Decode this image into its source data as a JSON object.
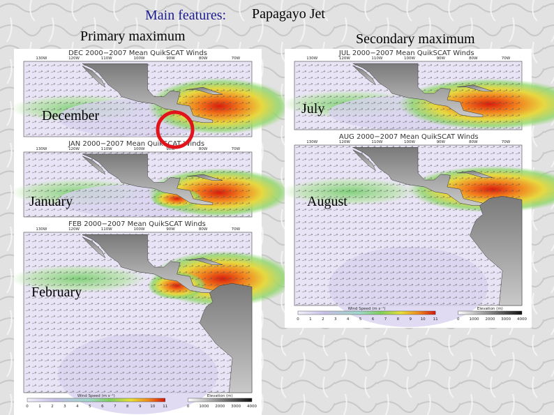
{
  "header": {
    "title_prefix": "Main features:",
    "title": "Papagayo Jet",
    "left_heading": "Primary maximum",
    "right_heading": "Secondary maximum"
  },
  "panels": [
    {
      "title": "DEC 2000−2007 Mean QuikSCAT Winds",
      "label": "December",
      "lon_labels": [
        "130W",
        "120W",
        "110W",
        "100W",
        "90W",
        "80W",
        "70W"
      ]
    },
    {
      "title": "JAN 2000−2007 Mean QuikSCAT Winds",
      "label": "January",
      "lon_labels": [
        "130W",
        "120W",
        "110W",
        "100W",
        "90W",
        "80W",
        "70W"
      ]
    },
    {
      "title": "FEB 2000−2007 Mean QuikSCAT Winds",
      "label": "February",
      "lon_labels": [
        "130W",
        "120W",
        "110W",
        "100W",
        "90W",
        "80W",
        "70W"
      ]
    },
    {
      "title": "JUL 2000−2007 Mean QuikSCAT Winds",
      "label": "July",
      "lon_labels": [
        "130W",
        "120W",
        "110W",
        "100W",
        "90W",
        "80W",
        "70W"
      ]
    },
    {
      "title": "AUG 2000−2007 Mean QuikSCAT Winds",
      "label": "August",
      "lon_labels": [
        "130W",
        "120W",
        "110W",
        "100W",
        "90W",
        "80W",
        "70W"
      ]
    }
  ],
  "colorbars": [
    {
      "wind_label": "Wind Speed (m s⁻¹)",
      "wind_ticks": [
        0,
        1,
        2,
        3,
        4,
        5,
        6,
        7,
        8,
        9,
        10,
        11
      ],
      "elevation_label": "Elevation (m)",
      "elevation_ticks": [
        0,
        1000,
        2000,
        3000,
        4000
      ]
    },
    {
      "wind_label": "Wind Speed (m s⁻¹)",
      "wind_ticks": [
        0,
        1,
        2,
        3,
        4,
        5,
        6,
        7,
        8,
        9,
        10,
        11
      ],
      "elevation_label": "Elevation (m)",
      "elevation_ticks": [
        0,
        1000,
        2000,
        3000,
        4000
      ]
    }
  ]
}
